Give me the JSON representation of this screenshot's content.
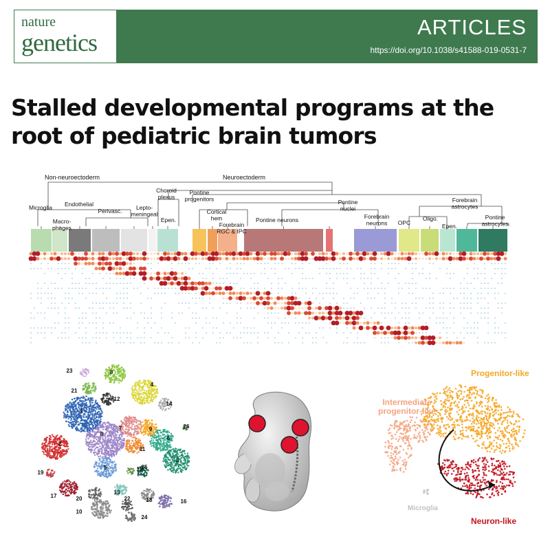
{
  "header": {
    "journal_line1": "nature",
    "journal_line2": "genetics",
    "section": "ARTICLES",
    "doi": "https://doi.org/10.1038/s41588-019-0531-7"
  },
  "title": "Stalled developmental programs at the root of pediatric brain tumors",
  "dendrogram": {
    "top_labels": [
      "Non-neuroectoderm",
      "Neuroectoderm"
    ],
    "clusters": [
      {
        "label": "Microglia",
        "color": "#b8dcb0"
      },
      {
        "label": "Macro-\nphages",
        "color": "#cfe6c8"
      },
      {
        "label": "Endothelial",
        "color": "#7a7a7a"
      },
      {
        "label": "Perivasc.",
        "color": "#bdbdbd"
      },
      {
        "label": "Lepto-\nmeningeal",
        "color": "#e3e3e3"
      },
      {
        "label": "Choroid\nplexus",
        "color": "#f2f2f2"
      },
      {
        "label": "Epen.",
        "color": "#b9e1d3"
      },
      {
        "label": "Pontine\nprogenitors",
        "color": "#f5c35a"
      },
      {
        "label": "Cortical\nhem",
        "color": "#f0a05a"
      },
      {
        "label": "Forebrain\nRGC & IPC",
        "color": "#f4b08a"
      },
      {
        "label": "Pontine neurons",
        "color": "#b87878"
      },
      {
        "label": "Pontine\nnuclei",
        "color": "#e57373"
      },
      {
        "label": "Forebrain\nneurons",
        "color": "#9a9ad6"
      },
      {
        "label": "OPC",
        "color": "#e0e88a"
      },
      {
        "label": "Oligo.",
        "color": "#c8dc78"
      },
      {
        "label": "Epen.",
        "color": "#b9e6d3"
      },
      {
        "label": "Forebrain\nastrocytes",
        "color": "#4fb79a"
      },
      {
        "label": "Pontine\nastrocytes",
        "color": "#2f7a60"
      }
    ]
  },
  "tsne_left": {
    "cluster_labels": [
      "0",
      "1",
      "2",
      "3",
      "4",
      "5",
      "6",
      "7",
      "8",
      "9",
      "10",
      "11",
      "12",
      "13",
      "14",
      "15",
      "16",
      "17",
      "18",
      "19",
      "20",
      "21",
      "22",
      "23",
      "24",
      "25",
      "26"
    ]
  },
  "tsne_right": {
    "labels": [
      "Progenitor-like",
      "Intermediate\nprogenitor-like",
      "Microglia",
      "Neuron-like"
    ],
    "colors": {
      "progenitor": "#f5a623",
      "intermediate": "#f4a582",
      "microglia": "#c8c8c8",
      "neuron": "#c0141e"
    }
  }
}
